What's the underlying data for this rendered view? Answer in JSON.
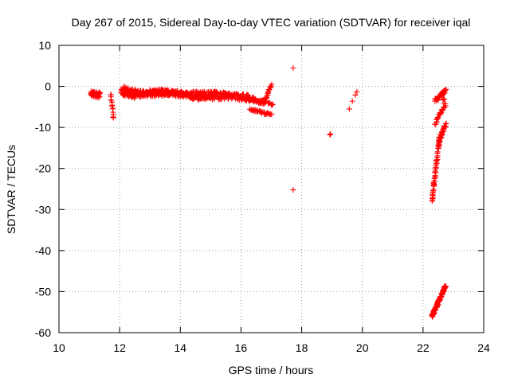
{
  "chart_data": {
    "type": "scatter",
    "title": "Day 267 of 2015, Sidereal Day-to-day VTEC variation (SDTVAR) for receiver iqal",
    "xlabel": "GPS time / hours",
    "ylabel": "SDTVAR / TECUs",
    "xlim": [
      10,
      24
    ],
    "ylim": [
      -60,
      10
    ],
    "xticks": [
      10,
      12,
      14,
      16,
      18,
      20,
      22,
      24
    ],
    "yticks": [
      10,
      0,
      -10,
      -20,
      -30,
      -40,
      -50,
      -60
    ],
    "grid": true,
    "marker": "+",
    "color": "#ff0000",
    "series": [
      {
        "name": "SDTVAR",
        "segments": [
          {
            "x0": 11.05,
            "x1": 11.35,
            "y0": -2.0,
            "y1": -2.0,
            "spread": 1.6,
            "n": 40
          },
          {
            "x0": 11.7,
            "x1": 11.8,
            "y0": -2.0,
            "y1": -7.5,
            "spread": 0.8,
            "n": 14
          },
          {
            "x0": 12.05,
            "x1": 12.5,
            "y0": -1.0,
            "y1": -1.8,
            "spread": 2.2,
            "n": 60
          },
          {
            "x0": 12.5,
            "x1": 13.5,
            "y0": -1.8,
            "y1": -1.5,
            "spread": 1.6,
            "n": 120
          },
          {
            "x0": 13.5,
            "x1": 14.3,
            "y0": -1.5,
            "y1": -2.0,
            "spread": 1.4,
            "n": 90
          },
          {
            "x0": 14.3,
            "x1": 15.5,
            "y0": -2.2,
            "y1": -2.3,
            "spread": 2.0,
            "n": 140
          },
          {
            "x0": 15.5,
            "x1": 16.3,
            "y0": -2.3,
            "y1": -2.8,
            "spread": 1.6,
            "n": 70
          },
          {
            "x0": 16.3,
            "x1": 16.8,
            "y0": -3.0,
            "y1": -4.0,
            "spread": 1.0,
            "n": 40
          },
          {
            "x0": 16.8,
            "x1": 17.0,
            "y0": -3.5,
            "y1": 0.5,
            "spread": 0.6,
            "n": 18
          },
          {
            "x0": 16.3,
            "x1": 17.0,
            "y0": -5.5,
            "y1": -7.0,
            "spread": 0.5,
            "n": 30
          },
          {
            "x0": 16.9,
            "x1": 17.05,
            "y0": -4.0,
            "y1": -4.3,
            "spread": 0.6,
            "n": 8
          },
          {
            "x0": 22.3,
            "x1": 22.55,
            "y0": -28.0,
            "y1": -12.0,
            "spread": 1.0,
            "n": 60
          },
          {
            "x0": 22.5,
            "x1": 22.75,
            "y0": -14.0,
            "y1": -9.0,
            "spread": 1.0,
            "n": 30
          },
          {
            "x0": 22.4,
            "x1": 22.7,
            "y0": -9.0,
            "y1": -5.0,
            "spread": 1.0,
            "n": 20
          },
          {
            "x0": 22.4,
            "x1": 22.75,
            "y0": -3.5,
            "y1": -1.0,
            "spread": 1.0,
            "n": 30
          },
          {
            "x0": 22.65,
            "x1": 22.75,
            "y0": -3.0,
            "y1": -4.5,
            "spread": 1.0,
            "n": 6
          },
          {
            "x0": 22.3,
            "x1": 22.75,
            "y0": -56.0,
            "y1": -48.5,
            "spread": 0.8,
            "n": 90
          }
        ],
        "points": [
          {
            "x": 17.72,
            "y": 4.5
          },
          {
            "x": 17.72,
            "y": -25.2
          },
          {
            "x": 18.93,
            "y": -11.8
          },
          {
            "x": 18.95,
            "y": -11.6
          },
          {
            "x": 19.57,
            "y": -5.5
          },
          {
            "x": 19.67,
            "y": -3.6
          },
          {
            "x": 19.77,
            "y": -2.1
          },
          {
            "x": 19.82,
            "y": -1.3
          }
        ]
      }
    ]
  }
}
